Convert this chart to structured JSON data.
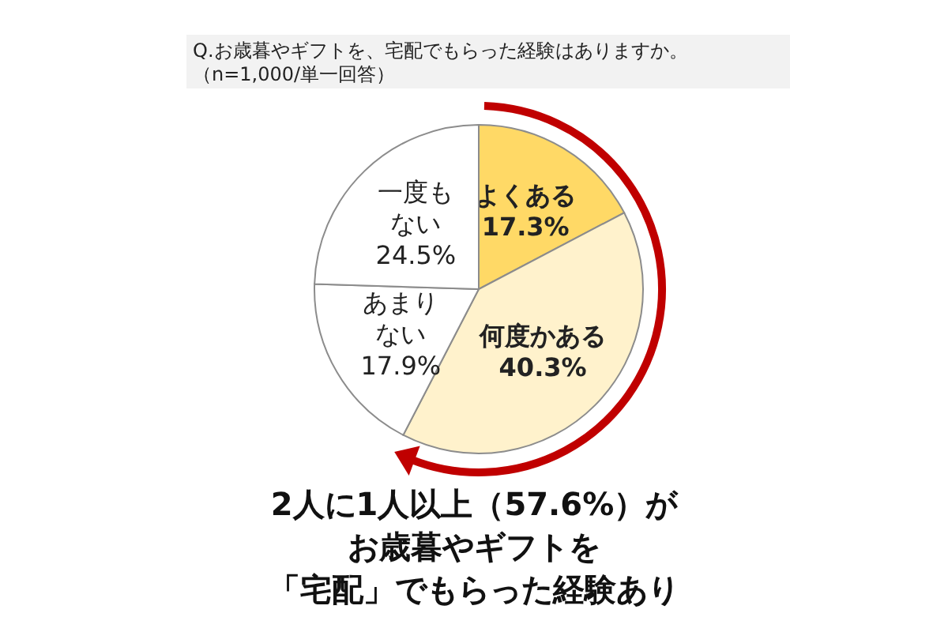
{
  "chart_data": {
    "type": "pie",
    "title": "Q.お歳暮やギフトを、宅配でもらった経験はありますか。",
    "subtitle": "（n=1,000/単一回答）",
    "categories": [
      "よくある",
      "何度かある",
      "あまりない",
      "一度もない"
    ],
    "values": [
      17.3,
      40.3,
      17.9,
      24.5
    ],
    "value_labels": [
      "17.3%",
      "40.3%",
      "17.9%",
      "24.5%"
    ],
    "colors": [
      "#ffd966",
      "#fff2cc",
      "#ffffff",
      "#ffffff"
    ],
    "annotations": [
      "2人に1人以上（57.6%）が",
      "お歳暮やギフトを",
      "「宅配」でもらった経験あり"
    ]
  }
}
